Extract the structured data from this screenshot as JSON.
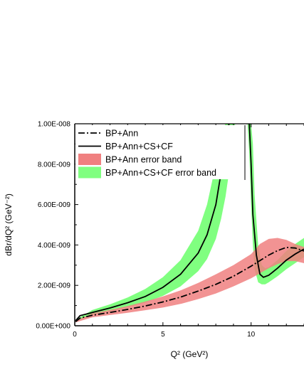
{
  "chart_data": {
    "type": "line",
    "xlabel": "Q² (GeV²)",
    "ylabel": "dBr/dQ² (GeV⁻²)",
    "xlim": [
      0,
      13
    ],
    "ylim": [
      0,
      1e-08
    ],
    "x_ticks": [
      0,
      5,
      10
    ],
    "x_tick_labels": [
      "0",
      "5",
      "10"
    ],
    "y_ticks": [
      0,
      2e-09,
      4e-09,
      6e-09,
      8e-09,
      1e-08
    ],
    "y_tick_labels": [
      "0.00E+000",
      "2.00E-009",
      "4.00E-009",
      "6.00E-009",
      "8.00E-009",
      "1.00E-008"
    ],
    "legend_position": "top-right",
    "grid": false,
    "series": [
      {
        "name": "BP+Ann",
        "style": "dash-dot",
        "color": "#000000",
        "x": [
          0.05,
          0.3,
          1,
          2,
          3,
          4,
          5,
          6,
          7,
          8,
          9,
          10,
          11,
          11.5,
          12,
          12.5,
          13
        ],
        "y": [
          2e-10,
          3.8e-10,
          5.2e-10,
          6.6e-10,
          8.1e-10,
          9.8e-10,
          1.18e-09,
          1.42e-09,
          1.72e-09,
          2.05e-09,
          2.45e-09,
          2.95e-09,
          3.5e-09,
          3.72e-09,
          3.88e-09,
          3.85e-09,
          3.7e-09
        ]
      },
      {
        "name": "BP+Ann+CS+CF",
        "style": "solid",
        "color": "#000000",
        "segments": [
          {
            "x": [
              0.05,
              0.3,
              1,
              2,
              3,
              4,
              5,
              6,
              7,
              7.5,
              8,
              8.3,
              8.55,
              8.75
            ],
            "y": [
              2.5e-10,
              5e-10,
              6.6e-10,
              8.8e-10,
              1.14e-09,
              1.45e-09,
              1.9e-09,
              2.55e-09,
              3.6e-09,
              4.5e-09,
              6e-09,
              7.6e-09,
              9.2e-09,
              1e-08
            ]
          },
          {
            "x": [
              9.9,
              10.0,
              10.1,
              10.3,
              10.5,
              10.7,
              11,
              11.5,
              12,
              12.5,
              13
            ],
            "y": [
              1e-08,
              8e-09,
              5.5e-09,
              3.5e-09,
              2.55e-09,
              2.4e-09,
              2.5e-09,
              2.85e-09,
              3.25e-09,
              3.55e-09,
              3.8e-09
            ]
          }
        ]
      },
      {
        "name": "BP+Ann error band",
        "type": "band",
        "color": "#f08080",
        "x": [
          0.05,
          1,
          2,
          3,
          4,
          5,
          6,
          7,
          8,
          9,
          10,
          10.5,
          11,
          11.5,
          12,
          12.5,
          13
        ],
        "lower": [
          1.7e-10,
          4.2e-10,
          5.3e-10,
          6.4e-10,
          7.7e-10,
          9e-10,
          1.08e-09,
          1.32e-09,
          1.6e-09,
          1.95e-09,
          2.35e-09,
          2.6e-09,
          2.85e-09,
          3.05e-09,
          3.2e-09,
          3.2e-09,
          3.1e-09
        ],
        "upper": [
          2.4e-10,
          6.2e-10,
          7.9e-10,
          9.8e-10,
          1.2e-09,
          1.45e-09,
          1.75e-09,
          2.12e-09,
          2.55e-09,
          3e-09,
          3.55e-09,
          4.05e-09,
          4.3e-09,
          4.35e-09,
          4.25e-09,
          4.05e-09,
          3.9e-09
        ]
      },
      {
        "name": "BP+Ann+CS+CF error band",
        "type": "band",
        "color": "#80ff80",
        "segments": [
          {
            "x": [
              0.05,
              1,
              2,
              3,
              4,
              5,
              6,
              7,
              7.5,
              8,
              8.3,
              8.55,
              8.7,
              8.9,
              9.1
            ],
            "lower": [
              2e-10,
              5.5e-10,
              7.2e-10,
              9.2e-10,
              1.15e-09,
              1.48e-09,
              1.95e-09,
              2.7e-09,
              3.3e-09,
              4.3e-09,
              5.3e-09,
              6.4e-09,
              7.3e-09,
              8.8e-09,
              1e-08
            ],
            "upper": [
              3e-10,
              7.8e-10,
              1.06e-09,
              1.4e-09,
              1.82e-09,
              2.4e-09,
              3.25e-09,
              4.7e-09,
              6e-09,
              8e-09,
              9.6e-09,
              1e-08,
              1e-08,
              1e-08,
              1e-08
            ]
          },
          {
            "x": [
              9.8,
              9.9,
              10.0,
              10.1,
              10.2,
              10.4,
              10.6,
              10.8,
              11,
              11.5,
              12,
              12.5,
              13
            ],
            "lower": [
              1e-08,
              8.5e-09,
              6e-09,
              4e-09,
              2.8e-09,
              2.15e-09,
              2.05e-09,
              2.05e-09,
              2.15e-09,
              2.45e-09,
              2.8e-09,
              3.1e-09,
              3.4e-09
            ],
            "upper": [
              1e-08,
              1e-08,
              1e-08,
              9e-09,
              6.5e-09,
              4e-09,
              3e-09,
              2.85e-09,
              2.9e-09,
              3.25e-09,
              3.7e-09,
              4.05e-09,
              4.35e-09
            ]
          }
        ]
      }
    ]
  }
}
